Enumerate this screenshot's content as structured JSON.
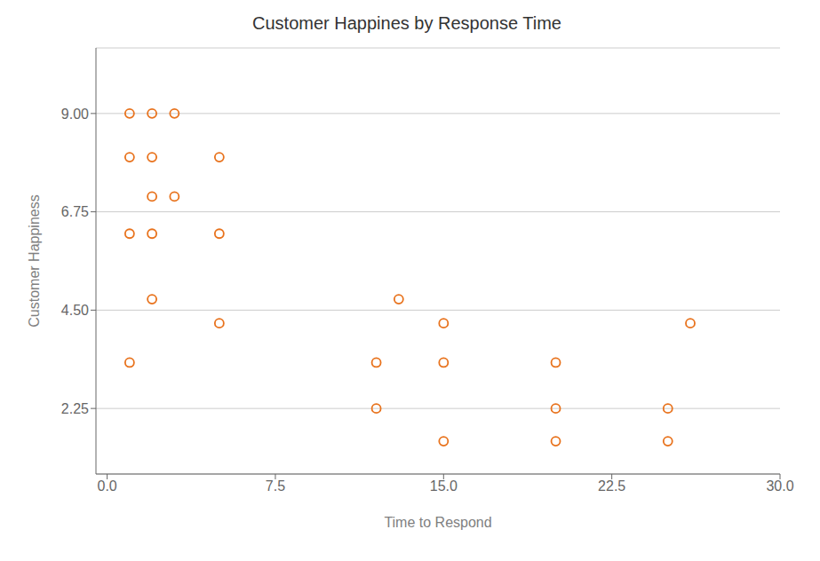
{
  "chart_data": {
    "type": "scatter",
    "title": "Customer Happines by Response Time",
    "xlabel": "Time to Respond",
    "ylabel": "Customer Happiness",
    "x": [
      1,
      2,
      3,
      1,
      2,
      5,
      2,
      3,
      1,
      2,
      5,
      2,
      13,
      5,
      15,
      26,
      1,
      12,
      15,
      20,
      12,
      20,
      25,
      15,
      20,
      25
    ],
    "values": [
      9,
      9,
      9,
      8,
      8,
      8,
      7.1,
      7.1,
      6.25,
      6.25,
      6.25,
      4.75,
      4.75,
      4.2,
      4.2,
      4.2,
      3.3,
      3.3,
      3.3,
      3.3,
      2.25,
      2.25,
      2.25,
      1.5,
      1.5,
      1.5
    ],
    "xlim": [
      -0.5,
      30
    ],
    "ylim": [
      0.75,
      10.5
    ],
    "xticks": [
      {
        "value": 0,
        "label": "0.0"
      },
      7.5,
      {
        "value": 15,
        "label": "15.0"
      },
      22.5,
      {
        "value": 30,
        "label": "30.0"
      }
    ],
    "yticks": [
      2.25,
      {
        "value": 4.5,
        "label": "4.50"
      },
      6.75,
      {
        "value": 9,
        "label": "9.00"
      }
    ],
    "color": "#E8721C",
    "marker": "open_circle",
    "grid": "y"
  }
}
